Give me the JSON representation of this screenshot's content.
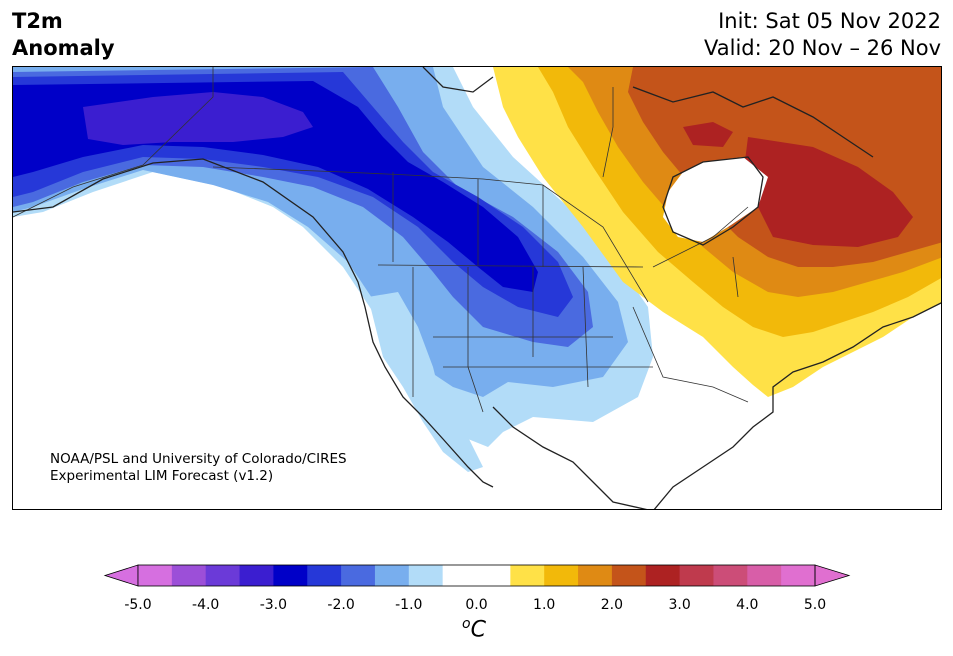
{
  "title": {
    "line1": "T2m",
    "line2": "Anomaly",
    "init": "Init: Sat 05 Nov 2022",
    "valid": "Valid: 20 Nov – 26 Nov"
  },
  "credit": {
    "line1": "NOAA/PSL and University of Colorado/CIRES",
    "line2": "Experimental LIM Forecast (v1.2)"
  },
  "colorbar": {
    "unit_super": "o",
    "unit_main": "C",
    "ticks": [
      "-5.0",
      "-4.0",
      "-3.0",
      "-2.0",
      "-1.0",
      "0.0",
      "1.0",
      "2.0",
      "3.0",
      "4.0",
      "5.0"
    ],
    "colors": [
      "#d66fe0",
      "#9c4fd8",
      "#6b3ad8",
      "#3b1ed0",
      "#0000c8",
      "#2638d8",
      "#4a6ae0",
      "#78aeee",
      "#b2dcf8",
      "#ffffff",
      "#ffffff",
      "#ffe147",
      "#f2b90a",
      "#df8a14",
      "#c4541a",
      "#ad2222",
      "#bf3a4d",
      "#cc4d78",
      "#d85ea8",
      "#e06fd0"
    ],
    "under_color": "#d66fe0",
    "over_color": "#e06fd0"
  },
  "map": {
    "anomaly_colors": {
      "cold_3": "#0000c8",
      "cold_25": "#2638d8",
      "cold_2": "#4a6ae0",
      "cold_15": "#78aeee",
      "cold_1": "#b2dcf8",
      "cold_35": "#3b1ed0",
      "warm_1": "#ffe147",
      "warm_15": "#f2b90a",
      "warm_2": "#df8a14",
      "warm_25": "#c4541a",
      "warm_3": "#ad2222"
    }
  }
}
